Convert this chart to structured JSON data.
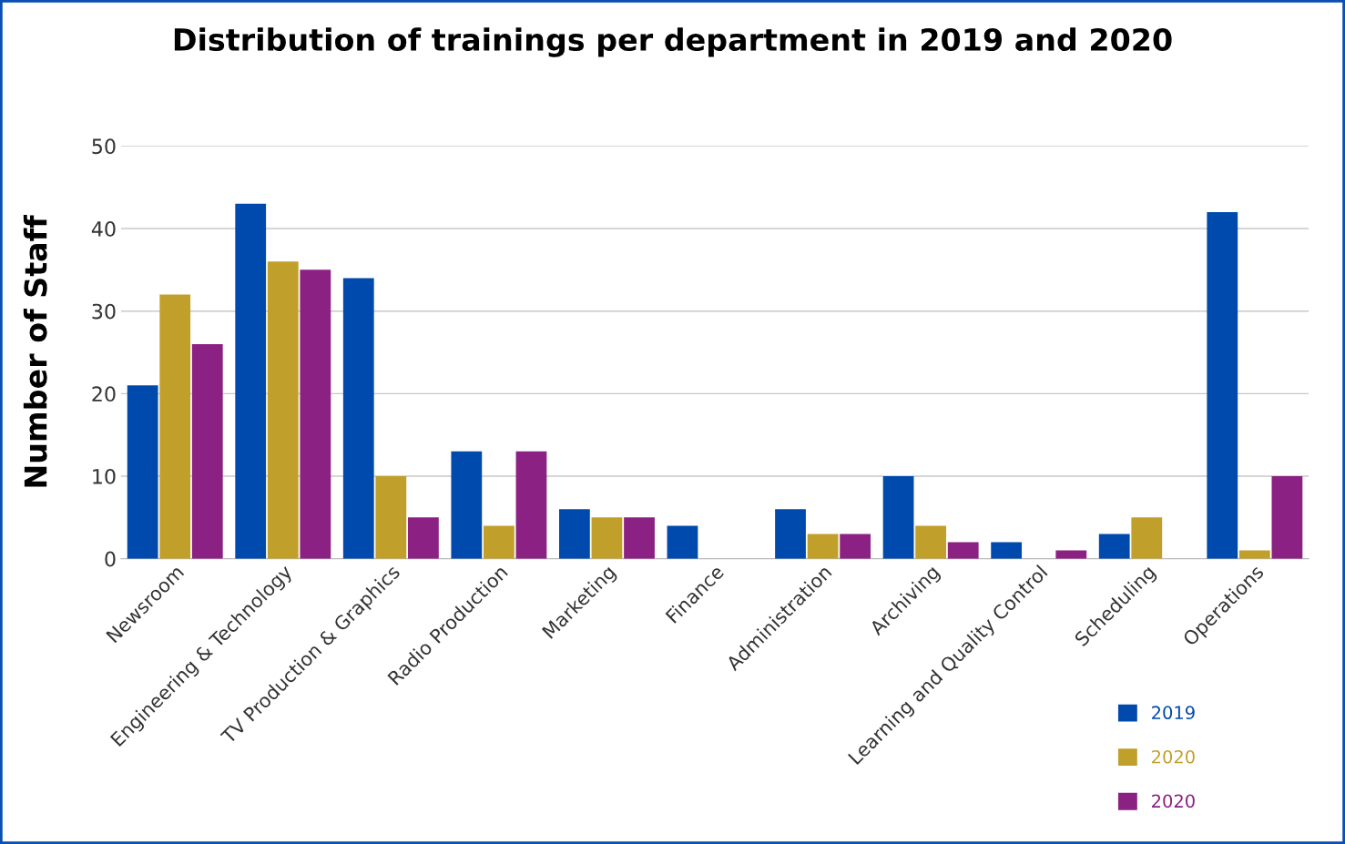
{
  "chart_data": {
    "type": "bar",
    "title": "Distribution of trainings per department in 2019 and 2020",
    "ylabel": "Number of Staff",
    "categories": [
      "Newsroom",
      "Engineering & Technology",
      "TV Production & Graphics",
      "Radio Production",
      "Marketing",
      "Finance",
      "Administration",
      "Archiving",
      "Learning and Quality Control",
      "Scheduling",
      "Operations"
    ],
    "series": [
      {
        "name": "2019",
        "color": "#004aad",
        "values": [
          21,
          43,
          34,
          13,
          6,
          4,
          6,
          10,
          2,
          3,
          42
        ]
      },
      {
        "name": "2020",
        "color": "#c0a02a",
        "values": [
          32,
          36,
          10,
          4,
          5,
          0,
          3,
          4,
          0,
          5,
          1
        ]
      },
      {
        "name": "2020",
        "color": "#8b2183",
        "values": [
          26,
          35,
          5,
          13,
          5,
          0,
          3,
          2,
          1,
          0,
          10
        ]
      }
    ],
    "ylim": [
      0,
      50
    ],
    "yticks": [
      0,
      10,
      20,
      30,
      40,
      50
    ],
    "grid": "y",
    "legend": "bottom right"
  }
}
